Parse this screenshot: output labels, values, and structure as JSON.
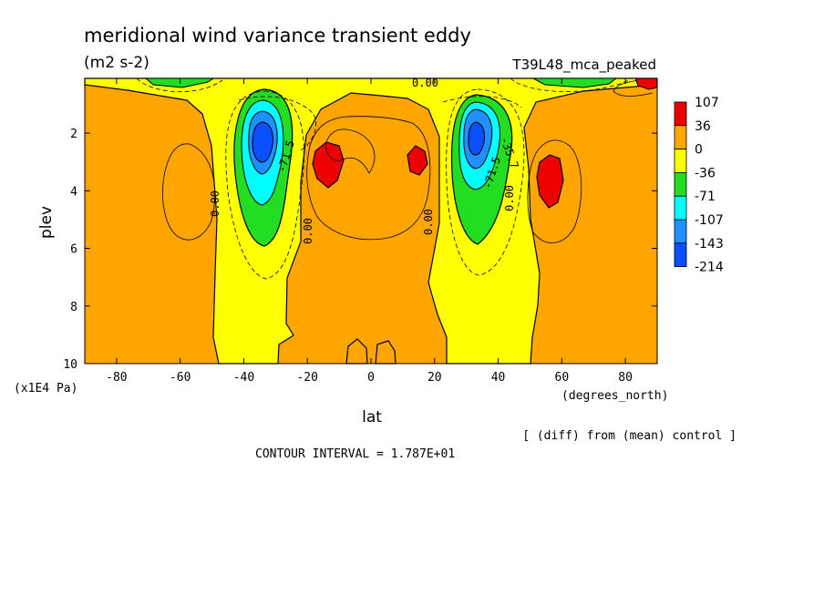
{
  "chart_data": {
    "type": "contour",
    "title": "meridional wind variance transient eddy",
    "units": "(m2 s-2)",
    "run_label": "T39L48_mca_peaked",
    "xlabel": "lat",
    "x_units": "(degrees_north)",
    "ylabel": "plev",
    "y_units": "(x1E4 Pa)",
    "x_ticks": [
      -80,
      -60,
      -40,
      -20,
      0,
      20,
      40,
      60,
      80
    ],
    "y_ticks": [
      2,
      4,
      6,
      8,
      10
    ],
    "xlim": [
      -90,
      90
    ],
    "ylim": [
      10,
      0.1
    ],
    "y_inverted": true,
    "colorbar": {
      "labels": [
        "107",
        "36",
        "0",
        "-36",
        "-71",
        "-107",
        "-143",
        "-214"
      ],
      "colors": [
        "#ee0000",
        "#ffa500",
        "#ffff00",
        "#22dd22",
        "#00ffff",
        "#1e90ff",
        "#0a50ff"
      ]
    },
    "contour_labels": [
      {
        "text": "0.00",
        "lat": 17,
        "plev": 0.15
      },
      {
        "text": "0.00",
        "lat": -46,
        "plev": 4.2
      },
      {
        "text": "0.00",
        "lat": -19,
        "plev": 5.2
      },
      {
        "text": "0.00",
        "lat": 20,
        "plev": 5.0
      },
      {
        "text": "0.00",
        "lat": 44,
        "plev": 4.2
      },
      {
        "text": "-71.5",
        "lat": -27,
        "plev": 2.5
      },
      {
        "text": "-71.5",
        "lat": 38,
        "plev": 3.0
      },
      {
        "text": "-35.7",
        "lat": 42,
        "plev": 1.5
      }
    ],
    "minima": [
      {
        "lat": -32,
        "plev": 2.4
      },
      {
        "lat": 32,
        "plev": 2.4
      }
    ],
    "maxima": [
      {
        "lat": -11,
        "plev": 3.0
      },
      {
        "lat": 14,
        "plev": 2.9
      },
      {
        "lat": 55,
        "plev": 3.6
      }
    ],
    "footnote": "[ (diff) from (mean) control ]",
    "contour_interval": "CONTOUR INTERVAL = 1.787E+01"
  }
}
